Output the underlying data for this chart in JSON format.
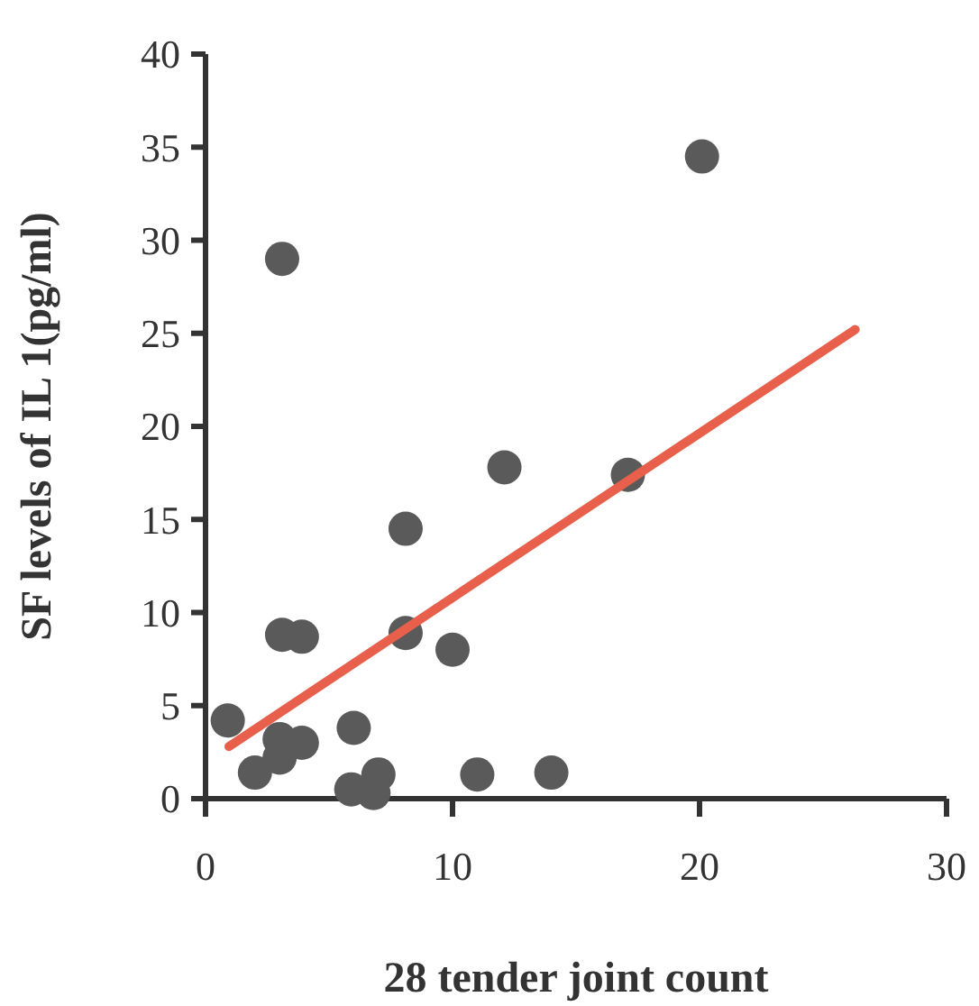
{
  "chart_data": {
    "type": "scatter",
    "xlabel": "28 tender joint count",
    "ylabel": "SF levels of IL 1(pg/ml)",
    "xlim": [
      0,
      30
    ],
    "ylim": [
      0,
      40
    ],
    "xticks": [
      0,
      10,
      20,
      30
    ],
    "yticks": [
      0,
      5,
      10,
      15,
      20,
      25,
      30,
      35,
      40
    ],
    "grid": false,
    "series": [
      {
        "color": "#5a5a5a",
        "marker": "circle",
        "x": [
          0.9,
          3.1,
          20.1,
          12.1,
          17.1,
          8.1,
          3.1,
          3.9,
          8.1,
          10,
          6,
          2,
          3,
          3,
          3.9,
          5.9,
          7,
          6.8,
          11,
          14
        ],
        "values": [
          4.2,
          29,
          34.5,
          17.8,
          17.4,
          14.5,
          8.8,
          8.7,
          8.9,
          8,
          3.8,
          1.4,
          3.2,
          2.2,
          3,
          0.5,
          1.3,
          0.3,
          1.3,
          1.4
        ]
      },
      {
        "type": "line",
        "color": "#e8604c",
        "x": [
          0.95,
          26.3
        ],
        "values": [
          2.8,
          25.2
        ],
        "line_style": "solid",
        "marker": "none"
      }
    ]
  }
}
